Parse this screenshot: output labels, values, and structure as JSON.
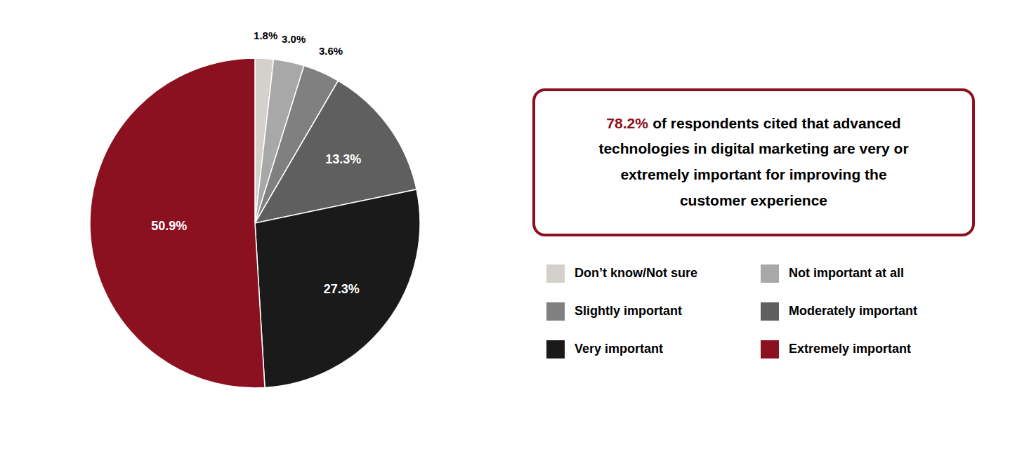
{
  "chart_data": {
    "type": "pie",
    "categories": [
      "Don’t know/Not sure",
      "Not important at all",
      "Slightly important",
      "Moderately important",
      "Very important",
      "Extremely important"
    ],
    "values": [
      1.8,
      3.0,
      3.6,
      13.3,
      27.3,
      50.9
    ],
    "value_labels": [
      "1.8%",
      "3.0%",
      "3.6%",
      "13.3%",
      "27.3%",
      "50.9%"
    ],
    "colors": [
      "#d4d0cb",
      "#a8a8a8",
      "#808080",
      "#5f5f5f",
      "#1a1a1a",
      "#8b1020"
    ],
    "data_labels": true,
    "legend": "right",
    "annotations": [
      {
        "text": "78.2%",
        "color": "#8b1020"
      },
      {
        "text": "of respondents cited that advanced"
      },
      {
        "text": "technologies in digital marketing are very or"
      },
      {
        "text": "extremely important for improving the"
      },
      {
        "text": "customer experience"
      }
    ]
  }
}
